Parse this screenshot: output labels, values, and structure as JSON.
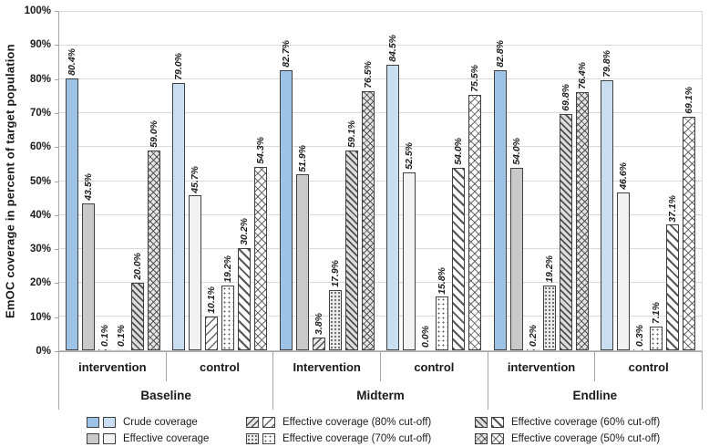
{
  "chart_data": {
    "type": "bar",
    "title": "",
    "ylabel": "EmOC coverage in percent of target population",
    "xlabel": "",
    "ylim": [
      0,
      100
    ],
    "ytick_step": 10,
    "ytick_labels": [
      "0%",
      "10%",
      "20%",
      "30%",
      "40%",
      "50%",
      "60%",
      "70%",
      "80%",
      "90%",
      "100%"
    ],
    "grid": true,
    "legend_position": "bottom",
    "value_label_format": "one-decimal-percent",
    "series": [
      {
        "key": "crude",
        "name": "Crude coverage"
      },
      {
        "key": "effective",
        "name": "Effective coverage"
      },
      {
        "key": "eff80",
        "name": "Effective coverage (80% cut-off)"
      },
      {
        "key": "eff70",
        "name": "Effective coverage (70% cut-off)"
      },
      {
        "key": "eff60",
        "name": "Effective coverage (60% cut-off)"
      },
      {
        "key": "eff50",
        "name": "Effective coverage (50% cut-off)"
      }
    ],
    "periods": [
      {
        "label": "Baseline",
        "subgroups": [
          {
            "label": "intervention",
            "variant": "intervention",
            "values": [
              80.4,
              43.5,
              0.1,
              0.1,
              20.0,
              59.0
            ]
          },
          {
            "label": "control",
            "variant": "control",
            "values": [
              79.0,
              45.7,
              10.1,
              19.2,
              30.2,
              54.3
            ]
          }
        ]
      },
      {
        "label": "Midterm",
        "subgroups": [
          {
            "label": "Intervention",
            "variant": "intervention",
            "values": [
              82.7,
              51.9,
              3.8,
              17.9,
              59.1,
              76.5
            ]
          },
          {
            "label": "control",
            "variant": "control",
            "values": [
              84.5,
              52.5,
              0.0,
              15.8,
              54.0,
              75.5
            ]
          }
        ]
      },
      {
        "label": "Endline",
        "subgroups": [
          {
            "label": "intervention",
            "variant": "intervention",
            "values": [
              82.8,
              54.0,
              0.2,
              19.2,
              69.8,
              76.4
            ]
          },
          {
            "label": "control",
            "variant": "control",
            "values": [
              79.8,
              46.6,
              0.3,
              7.1,
              37.1,
              69.1
            ]
          }
        ]
      }
    ],
    "colors": {
      "crude_intervention": "#9dc3e6",
      "crude_control": "#cadef2",
      "effective_intervention": "#c9c9c9",
      "effective_control": "#f2f2f2",
      "pattern_ink": "#404040",
      "gridline": "#d9d9d9"
    },
    "legend_columns": [
      [
        "Crude coverage",
        "Effective coverage"
      ],
      [
        "Effective coverage (80% cut-off)",
        "Effective coverage (70% cut-off)"
      ],
      [
        "Effective coverage (60% cut-off)",
        "Effective coverage (50% cut-off)"
      ]
    ]
  }
}
